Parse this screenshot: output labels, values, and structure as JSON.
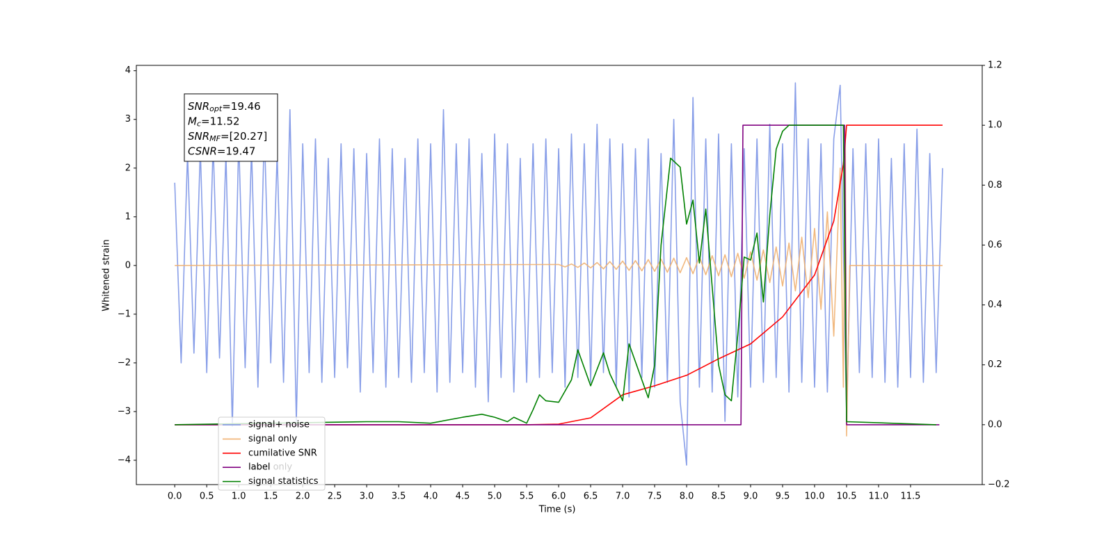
{
  "chart_data": {
    "type": "line",
    "xlabel": "Time (s)",
    "ylabel": "Whitened strain",
    "xlim": [
      -0.6,
      12.62
    ],
    "ylim": [
      -4.5,
      4.11
    ],
    "y2lim": [
      -0.2,
      1.2
    ],
    "xticks": [
      {
        "value": 0,
        "label": "0.0"
      },
      0.5,
      {
        "value": 1,
        "label": "1.0"
      },
      1.5,
      {
        "value": 2,
        "label": "2.0"
      },
      2.5,
      {
        "value": 3,
        "label": "3.0"
      },
      3.5,
      {
        "value": 4,
        "label": "4.0"
      },
      4.5,
      {
        "value": 5,
        "label": "5.0"
      },
      5.5,
      {
        "value": 6,
        "label": "6.0"
      },
      6.5,
      {
        "value": 7,
        "label": "7.0"
      },
      7.5,
      {
        "value": 8,
        "label": "8.0"
      },
      8.5,
      {
        "value": 9,
        "label": "9.0"
      },
      9.5,
      {
        "value": 10,
        "label": "10.0"
      },
      10.5,
      {
        "value": 11,
        "label": "11.0"
      },
      11.5
    ],
    "yticks": [
      {
        "value": -4,
        "label": "−4"
      },
      {
        "value": -3,
        "label": "−3"
      },
      {
        "value": -2,
        "label": "−2"
      },
      {
        "value": -1,
        "label": "−1"
      },
      0,
      1,
      2,
      3,
      4
    ],
    "y2ticks": [
      {
        "value": -0.2,
        "label": "−0.2"
      },
      {
        "value": 0,
        "label": "0.0"
      },
      0.2,
      0.4,
      0.6,
      0.8,
      {
        "value": 1,
        "label": "1.0"
      },
      1.2
    ],
    "legend": "lower left",
    "ghost_text": "label only",
    "annotations": [
      {
        "main": "SNR",
        "sub": "opt",
        "rest": "=19.46"
      },
      {
        "main": "M",
        "sub": "c",
        "rest": "=11.52"
      },
      {
        "main": "SNR",
        "sub": "MF",
        "rest": "=[20.27]"
      },
      {
        "main": "CSNR",
        "rest": "=19.47"
      }
    ],
    "series": [
      {
        "name": "signal+ noise",
        "color": "#7b93e6",
        "axis": "y",
        "x": [
          0,
          0.1,
          0.2,
          0.3,
          0.4,
          0.5,
          0.6,
          0.7,
          0.8,
          0.9,
          1,
          1.1,
          1.2,
          1.3,
          1.4,
          1.5,
          1.6,
          1.7,
          1.8,
          1.9,
          2,
          2.1,
          2.2,
          2.3,
          2.4,
          2.5,
          2.6,
          2.7,
          2.8,
          2.9,
          3,
          3.1,
          3.2,
          3.3,
          3.4,
          3.5,
          3.6,
          3.7,
          3.8,
          3.9,
          4,
          4.1,
          4.2,
          4.3,
          4.4,
          4.5,
          4.6,
          4.7,
          4.8,
          4.9,
          5,
          5.1,
          5.2,
          5.3,
          5.4,
          5.5,
          5.6,
          5.7,
          5.8,
          5.9,
          6,
          6.1,
          6.2,
          6.3,
          6.4,
          6.5,
          6.6,
          6.7,
          6.8,
          6.9,
          7,
          7.1,
          7.2,
          7.3,
          7.4,
          7.5,
          7.6,
          7.7,
          7.8,
          7.9,
          8,
          8.1,
          8.2,
          8.3,
          8.4,
          8.5,
          8.6,
          8.7,
          8.8,
          8.9,
          9,
          9.1,
          9.2,
          9.3,
          9.4,
          9.5,
          9.6,
          9.7,
          9.8,
          9.9,
          10,
          10.1,
          10.2,
          10.3,
          10.4,
          10.5,
          10.6,
          10.7,
          10.8,
          10.9,
          11,
          11.1,
          11.2,
          11.3,
          11.4,
          11.5,
          11.6,
          11.7,
          11.8,
          11.9,
          12
        ],
        "values": [
          1.7,
          -2.0,
          2.3,
          -1.8,
          2.4,
          -2.2,
          2.5,
          -1.9,
          2.3,
          -3.3,
          2.6,
          -2.1,
          2.4,
          -2.5,
          2.8,
          -2.0,
          2.3,
          -2.4,
          3.2,
          -3.2,
          2.5,
          -2.2,
          2.6,
          -2.4,
          2.2,
          -2.3,
          2.5,
          -2.1,
          2.4,
          -2.6,
          2.3,
          -2.2,
          2.6,
          -2.5,
          2.4,
          -2.3,
          2.2,
          -2.4,
          2.6,
          -2.2,
          2.5,
          -2.6,
          3.2,
          -2.4,
          2.5,
          -2.2,
          2.6,
          -2.5,
          2.3,
          -2.8,
          2.7,
          -2.3,
          2.5,
          -2.6,
          2.2,
          -2.4,
          2.5,
          -2.3,
          2.6,
          -2.2,
          2.4,
          -2.5,
          2.7,
          -2.3,
          2.5,
          -2.4,
          2.9,
          -2.2,
          2.6,
          -2.5,
          2.5,
          -2.7,
          2.4,
          -2.3,
          2.6,
          -2.5,
          2.3,
          -2.4,
          3.0,
          -2.8,
          -4.1,
          3.45,
          -2.5,
          2.6,
          -2.6,
          2.7,
          -3.2,
          2.5,
          -2.7,
          2.4,
          -2.5,
          2.6,
          -2.4,
          2.9,
          -2.3,
          2.5,
          -2.6,
          3.75,
          -2.4,
          2.6,
          -2.5,
          2.5,
          -2.6,
          2.6,
          3.7,
          -3.1,
          2.4,
          -2.2,
          2.5,
          -2.3,
          2.6,
          -2.4,
          2.2,
          -2.5,
          2.5,
          -2.3,
          2.8,
          -2.4,
          2.3,
          -2.2,
          2.0
        ]
      },
      {
        "name": "signal only",
        "color": "#f0b070",
        "axis": "y",
        "x": [
          0,
          6,
          6.1,
          6.2,
          6.3,
          6.4,
          6.5,
          6.6,
          6.7,
          6.8,
          6.9,
          7,
          7.1,
          7.2,
          7.3,
          7.4,
          7.5,
          7.6,
          7.7,
          7.8,
          7.9,
          8,
          8.1,
          8.2,
          8.3,
          8.4,
          8.5,
          8.6,
          8.7,
          8.8,
          8.9,
          9,
          9.1,
          9.2,
          9.3,
          9.4,
          9.5,
          9.6,
          9.7,
          9.8,
          9.9,
          10,
          10.1,
          10.2,
          10.3,
          10.4,
          10.45,
          10.48,
          10.5,
          10.55,
          12
        ],
        "values": [
          0,
          0.02,
          -0.03,
          0.03,
          -0.04,
          0.05,
          -0.05,
          0.06,
          -0.07,
          0.08,
          -0.08,
          0.09,
          -0.1,
          0.1,
          -0.11,
          0.12,
          -0.12,
          0.13,
          -0.14,
          0.15,
          -0.15,
          0.16,
          -0.17,
          0.18,
          -0.19,
          0.2,
          -0.21,
          0.22,
          -0.23,
          0.25,
          -0.26,
          0.28,
          -0.3,
          0.32,
          -0.35,
          0.38,
          -0.42,
          0.46,
          -0.52,
          0.58,
          -0.66,
          0.76,
          -0.9,
          1.1,
          -1.45,
          2.0,
          -2.5,
          2.6,
          -3.5,
          0,
          0
        ]
      },
      {
        "name": "cumilative SNR",
        "color": "#ff0000",
        "axis": "y2",
        "x": [
          0,
          5.5,
          6,
          6.5,
          7,
          7.5,
          8,
          8.5,
          9,
          9.5,
          10,
          10.3,
          10.45,
          10.5,
          12
        ],
        "values": [
          0,
          0,
          0.002,
          0.023,
          0.1,
          0.13,
          0.165,
          0.22,
          0.27,
          0.36,
          0.5,
          0.68,
          0.87,
          1.0,
          1.0
        ]
      },
      {
        "name": "label",
        "color": "#800080",
        "axis": "y2",
        "x": [
          0,
          8.85,
          8.88,
          10.47,
          10.5,
          11.95
        ],
        "values": [
          0,
          0,
          1,
          1,
          0,
          0
        ]
      },
      {
        "name": "signal statistics",
        "color": "#008000",
        "axis": "y2",
        "x": [
          0,
          3,
          3.5,
          4,
          4.5,
          4.8,
          5,
          5.2,
          5.3,
          5.5,
          5.6,
          5.7,
          5.8,
          6,
          6.2,
          6.3,
          6.5,
          6.7,
          6.8,
          7,
          7.1,
          7.3,
          7.4,
          7.5,
          7.6,
          7.75,
          7.9,
          8,
          8.1,
          8.2,
          8.3,
          8.5,
          8.6,
          8.7,
          8.8,
          8.9,
          9,
          9.1,
          9.2,
          9.3,
          9.4,
          9.5,
          9.6,
          10.45,
          10.5,
          11.9
        ],
        "values": [
          0,
          0.01,
          0.01,
          0.005,
          0.025,
          0.035,
          0.025,
          0.01,
          0.025,
          0.005,
          0.05,
          0.1,
          0.08,
          0.075,
          0.15,
          0.25,
          0.13,
          0.24,
          0.17,
          0.08,
          0.27,
          0.15,
          0.09,
          0.2,
          0.6,
          0.89,
          0.86,
          0.67,
          0.75,
          0.54,
          0.72,
          0.2,
          0.1,
          0.08,
          0.3,
          0.56,
          0.55,
          0.64,
          0.41,
          0.7,
          0.92,
          0.98,
          1.0,
          1.0,
          0.01,
          0
        ]
      }
    ]
  }
}
